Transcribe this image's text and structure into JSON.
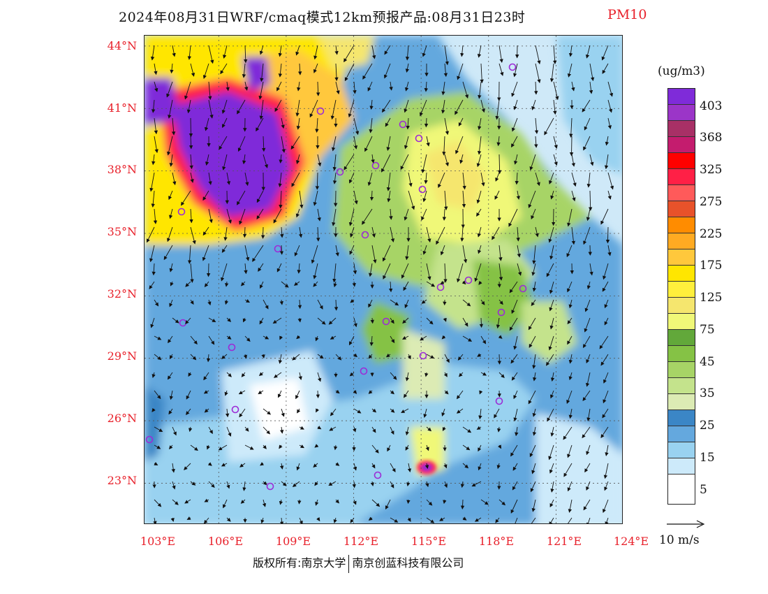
{
  "title": {
    "main": "2024年08月31日WRF/cmaq模式12km预报产品:08月31日23时",
    "variable": "PM10"
  },
  "map": {
    "lat_labels": [
      "44°N",
      "41°N",
      "38°N",
      "35°N",
      "32°N",
      "29°N",
      "26°N",
      "23°N"
    ],
    "lon_labels": [
      "103°E",
      "106°E",
      "109°E",
      "112°E",
      "115°E",
      "118°E",
      "121°E",
      "124°E"
    ],
    "lat_range": [
      21,
      44.5
    ],
    "lon_range": [
      102.7,
      124
    ]
  },
  "legend": {
    "unit": "(ug/m3)",
    "ticks": [
      "403",
      "368",
      "325",
      "275",
      "225",
      "175",
      "125",
      "75",
      "45",
      "35",
      "25",
      "15",
      "5"
    ],
    "colors": [
      "#7f2bd9",
      "#9b35c8",
      "#a83066",
      "#c41c6e",
      "#ff0000",
      "#ff2046",
      "#ff5a5a",
      "#e8522a",
      "#ff8c00",
      "#ffaa22",
      "#ffc83c",
      "#ffe600",
      "#ffef3c",
      "#f5e66e",
      "#f0f878",
      "#62a83a",
      "#85c245",
      "#a7d466",
      "#c4e38c",
      "#dcebb4",
      "#3b86c6",
      "#64a8de",
      "#99d2f0",
      "#cdeafa",
      "#ffffff"
    ]
  },
  "wind_reference": {
    "label": "10 m/s"
  },
  "copyright": {
    "left": "版权所有:南京大学",
    "right": "南京创蓝科技有限公司"
  },
  "colors": {
    "label_red": "#e8202a",
    "station_marker": "#9c2bd6"
  }
}
